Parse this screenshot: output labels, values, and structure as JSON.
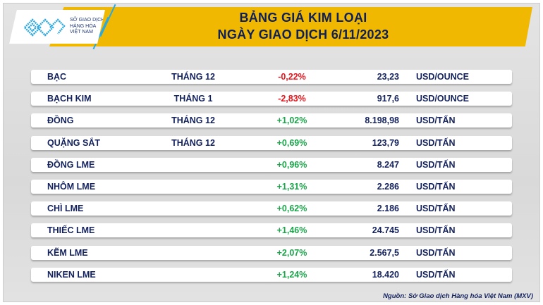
{
  "logo": {
    "line1": "SỞ GIAO DỊCH",
    "line2": "HÀNG HÓA",
    "line3": "VIỆT NAM"
  },
  "header": {
    "title1": "BẢNG GIÁ KIM LOẠI",
    "title2": "NGÀY GIAO DỊCH 6/11/2023"
  },
  "colors": {
    "negative": "#e8141b",
    "positive": "#1aa54a",
    "band": "#f0b800",
    "text": "#13225e"
  },
  "rows": [
    {
      "name": "BẠC",
      "month": "THÁNG 12",
      "change": "-0,22%",
      "price": "23,23",
      "unit": "USD/OUNCE"
    },
    {
      "name": "BẠCH KIM",
      "month": "THÁNG 1",
      "change": "-2,83%",
      "price": "917,6",
      "unit": "USD/OUNCE"
    },
    {
      "name": "ĐỒNG",
      "month": "THÁNG 12",
      "change": "+1,02%",
      "price": "8.198,98",
      "unit": "USD/TẤN"
    },
    {
      "name": "QUẶNG SẮT",
      "month": "THÁNG 12",
      "change": "+0,69%",
      "price": "123,79",
      "unit": "USD/TẤN"
    },
    {
      "name": "ĐỒNG LME",
      "month": "",
      "change": "+0,96%",
      "price": "8.247",
      "unit": "USD/TẤN"
    },
    {
      "name": "NHÔM LME",
      "month": "",
      "change": "+1,31%",
      "price": "2.286",
      "unit": "USD/TẤN"
    },
    {
      "name": "CHÌ LME",
      "month": "",
      "change": "+0,62%",
      "price": "2.186",
      "unit": "USD/TẤN"
    },
    {
      "name": "THIẾC LME",
      "month": "",
      "change": "+1,46%",
      "price": "24.745",
      "unit": "USD/TẤN"
    },
    {
      "name": "KẼM LME",
      "month": "",
      "change": "+2,07%",
      "price": "2.567,5",
      "unit": "USD/TẤN"
    },
    {
      "name": "NIKEN LME",
      "month": "",
      "change": "+1,24%",
      "price": "18.420",
      "unit": "USD/TẤN"
    }
  ],
  "source": "Nguồn: Sở Giao dịch Hàng hóa Việt Nam (MXV)"
}
